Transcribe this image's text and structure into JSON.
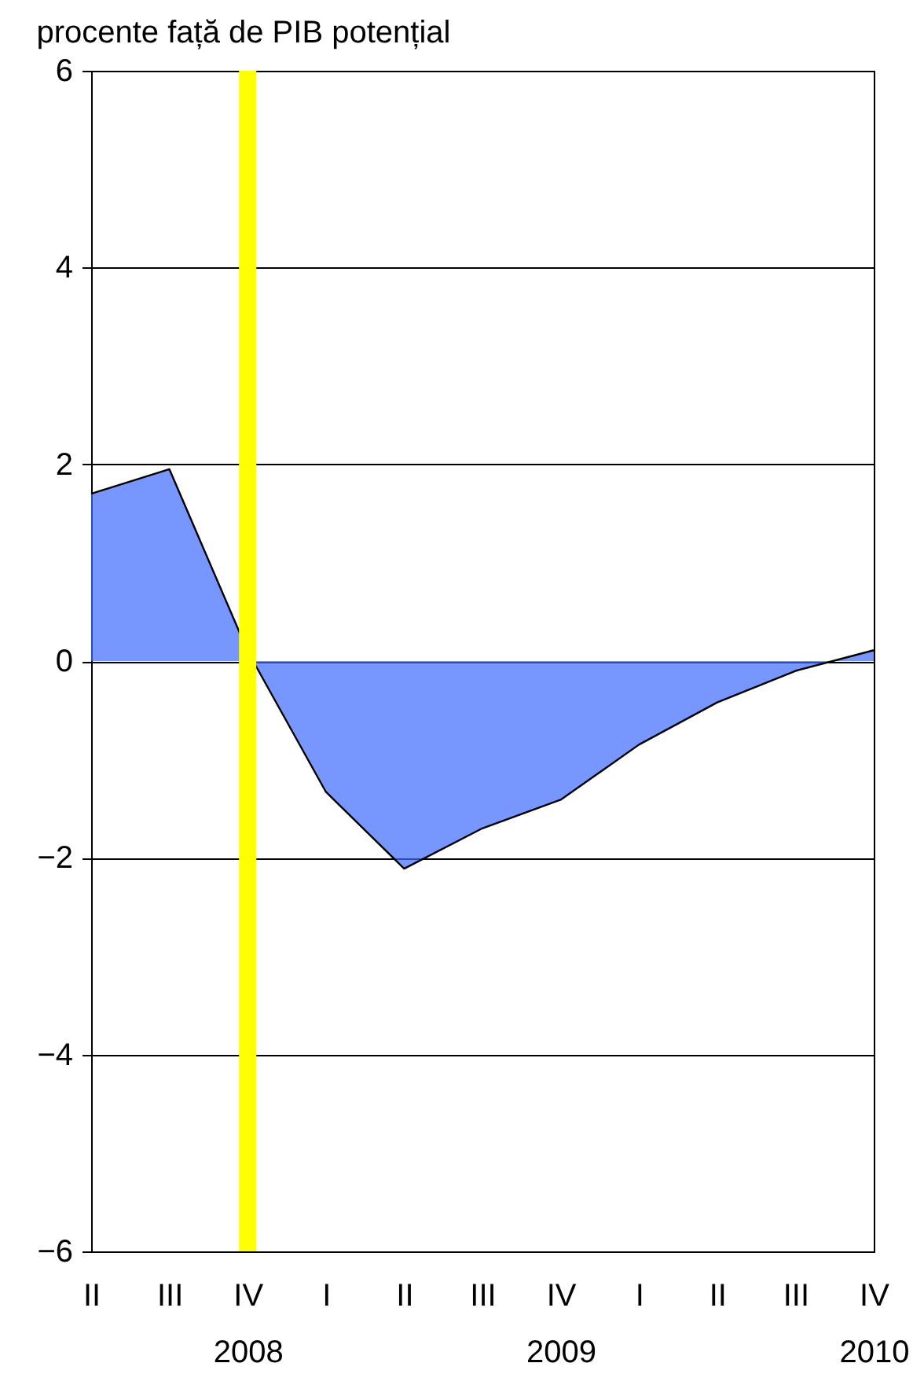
{
  "chart_data": {
    "type": "area",
    "ylabel": "procente față de PIB potențial",
    "categories": [
      "II",
      "III",
      "IV\n2008",
      "I",
      "II",
      "III",
      "IV\n2009",
      "I",
      "II",
      "III",
      "IV\n2010"
    ],
    "series": [
      {
        "color": "#3d6bff",
        "values": [
          1.7,
          1.95,
          0.1,
          -1.33,
          -2.11,
          -1.7,
          -1.41,
          -0.85,
          -0.42,
          -0.1,
          0.11
        ]
      }
    ],
    "ylim": [
      -6,
      6
    ],
    "yticks": [
      -6,
      -4,
      -2,
      0,
      2,
      4,
      6
    ],
    "grid": "y",
    "ref_lines": [
      {
        "axis": "x",
        "value": "IV\n2008",
        "color": "#ffff00"
      }
    ]
  }
}
